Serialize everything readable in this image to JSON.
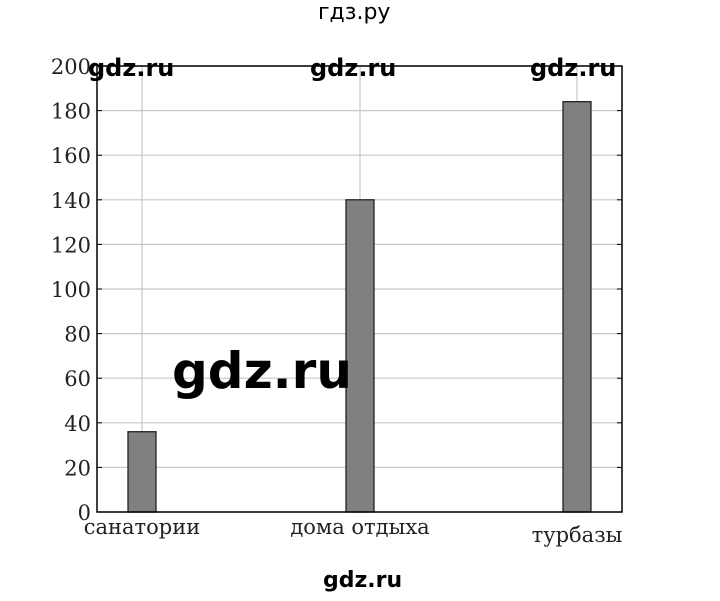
{
  "header": {
    "site_label": "гдз.ру"
  },
  "footer": {
    "site_label": "gdz.ru"
  },
  "watermarks": [
    "gdz.ru",
    "gdz.ru",
    "gdz.ru",
    "gdz.ru"
  ],
  "chart_data": {
    "type": "bar",
    "categories": [
      "санатории",
      "дома отдыха",
      "турбазы"
    ],
    "values": [
      36,
      140,
      184
    ],
    "title": "",
    "xlabel": "",
    "ylabel": "",
    "ylim": [
      0,
      200
    ],
    "yticks": [
      0,
      20,
      40,
      60,
      80,
      100,
      120,
      140,
      160,
      180,
      200
    ],
    "grid": true,
    "bar_color": "#808080"
  }
}
